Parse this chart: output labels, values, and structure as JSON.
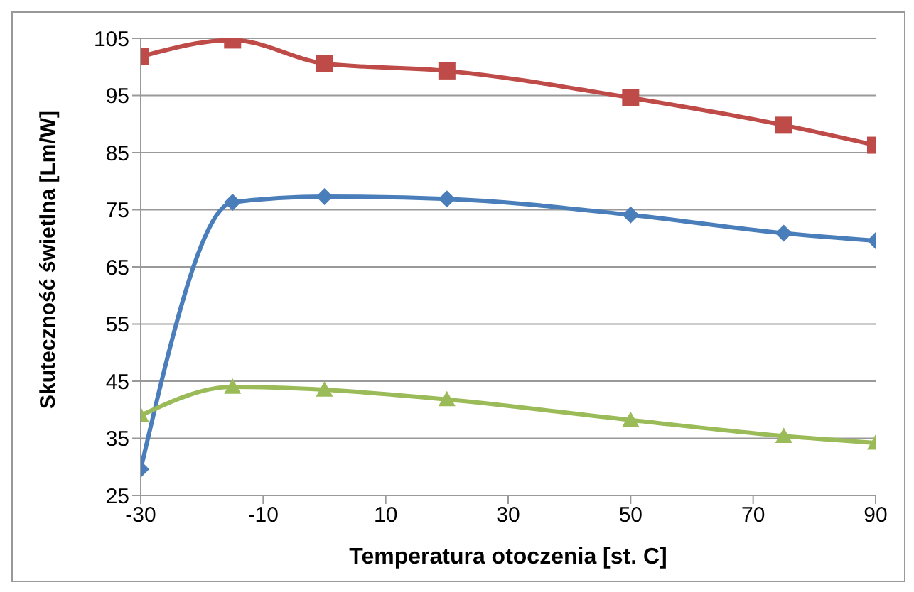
{
  "chart_data": {
    "type": "line",
    "xlabel": "Temperatura otoczenia [st. C]",
    "ylabel": "Skuteczność świetlna  [Lm/W]",
    "x": [
      -30,
      -15,
      0,
      20,
      50,
      75,
      90
    ],
    "series": [
      {
        "color": "#4a7ebb",
        "marker": "diamond",
        "values": [
          29.6,
          76.3,
          77.3,
          76.9,
          74.1,
          70.9,
          69.6
        ]
      },
      {
        "color": "#be4b48",
        "marker": "square",
        "values": [
          101.8,
          104.7,
          100.6,
          99.3,
          94.6,
          89.8,
          86.3
        ]
      },
      {
        "color": "#9bbb59",
        "marker": "triangle",
        "values": [
          39,
          44,
          43.5,
          41.8,
          38.2,
          35.4,
          34.2
        ]
      }
    ],
    "xlim": [
      -30,
      90
    ],
    "xticks": [
      -30,
      -10,
      10,
      30,
      50,
      70,
      90
    ],
    "ylim": [
      25,
      105
    ],
    "yticks": [
      25,
      35,
      45,
      55,
      65,
      75,
      85,
      95,
      105
    ],
    "grid": "y",
    "line_style": "solid"
  }
}
